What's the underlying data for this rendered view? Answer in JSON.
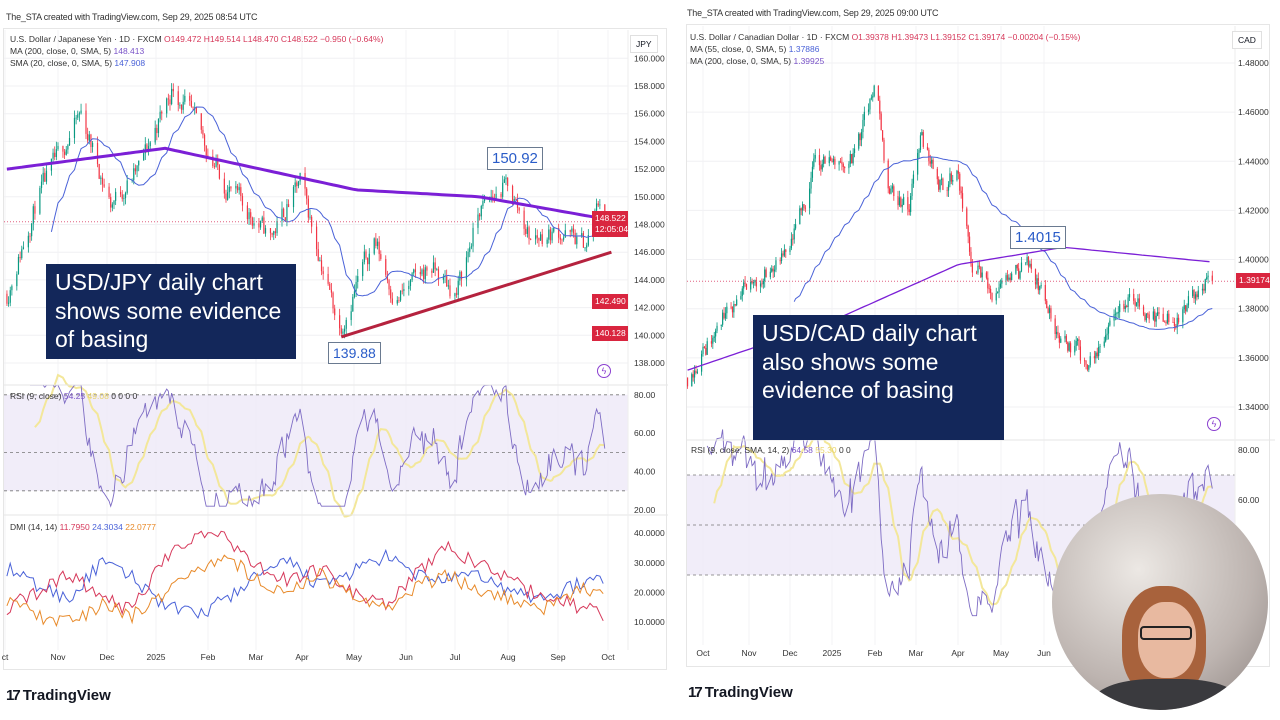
{
  "left": {
    "credit": "The_STA created with TradingView.com, Sep 29, 2025 08:54 UTC",
    "symbol": "U.S. Dollar / Japanese Yen · 1D · FXCM",
    "ohlc": {
      "o": "O149.472",
      "h": "H149.514",
      "l": "L148.470",
      "c": "C148.522",
      "chg": "−0.950 (−0.64%)"
    },
    "ma1": {
      "label": "MA (200, close, 0, SMA, 5)",
      "value": "148.413"
    },
    "ma2": {
      "label": "SMA (20, close, 0, SMA, 5)",
      "value": "147.908"
    },
    "currency": "JPY",
    "price_tag": "148.522",
    "countdown": "12:05:04",
    "tag2": "142.490",
    "tag3": "140.128",
    "rsi_legend": {
      "label": "RSI (9, close)",
      "value": "54.25",
      "sma": "49.08",
      "z": "0  0  0  0"
    },
    "dmi_legend": {
      "label": "DMI (14, 14)",
      "minus": "11.7950",
      "plus": "24.3034",
      "adx": "22.0777"
    },
    "annotation": "USD/JPY daily chart shows some evidence of basing",
    "high_label": "150.92",
    "low_label": "139.88",
    "colors": {
      "up": "#089981",
      "down": "#f23645",
      "ma200": "#7b1fd6",
      "sma": "#4a62d8",
      "trend": "#b5223e"
    }
  },
  "right": {
    "credit": "The_STA created with TradingView.com, Sep 29, 2025 09:00 UTC",
    "symbol": "U.S. Dollar / Canadian Dollar · 1D · FXCM",
    "ohlc": {
      "o": "O1.39378",
      "h": "H1.39473",
      "l": "L1.39152",
      "c": "C1.39174",
      "chg": "−0.00204 (−0.15%)"
    },
    "ma1": {
      "label": "MA (55, close, 0, SMA, 5)",
      "value": "1.37886"
    },
    "ma2": {
      "label": "MA (200, close, 0, SMA, 5)",
      "value": "1.39925"
    },
    "currency": "CAD",
    "price_tag": "1.39174",
    "rsi_legend": {
      "label": "RSI (9, close, SMA, 14, 2)",
      "value": "64.58",
      "sma": "55.30",
      "z": "0  0"
    },
    "annotation": "USD/CAD daily chart also shows some evidence of basing",
    "level_label": "1.4015"
  },
  "branding": "TradingView",
  "chart_data": [
    {
      "type": "candlestick",
      "title": "USD/JPY 1D",
      "ylim": [
        137,
        160.5
      ],
      "yticks": [
        "160.000",
        "158.000",
        "156.000",
        "154.000",
        "152.000",
        "150.000",
        "148.000",
        "146.000",
        "144.000",
        "142.000",
        "140.000",
        "138.000"
      ],
      "xticks": [
        "ct",
        "Nov",
        "Dec",
        "2025",
        "Feb",
        "Mar",
        "Apr",
        "May",
        "Jun",
        "Jul",
        "Aug",
        "Sep",
        "Oct"
      ],
      "close_path": [
        [
          "2024-10-01",
          143
        ],
        [
          "2024-10-20",
          150
        ],
        [
          "2024-11-15",
          156
        ],
        [
          "2024-12-03",
          149.5
        ],
        [
          "2024-12-20",
          152
        ],
        [
          "2025-01-10",
          158
        ],
        [
          "2025-01-20",
          156
        ],
        [
          "2025-02-10",
          151
        ],
        [
          "2025-03-10",
          147
        ],
        [
          "2025-03-28",
          151
        ],
        [
          "2025-04-21",
          140.5
        ],
        [
          "2025-05-12",
          147
        ],
        [
          "2025-05-25",
          142.5
        ],
        [
          "2025-06-15",
          145
        ],
        [
          "2025-07-01",
          143
        ],
        [
          "2025-07-15",
          149
        ],
        [
          "2025-08-01",
          150.9
        ],
        [
          "2025-08-15",
          147
        ],
        [
          "2025-09-01",
          147.5
        ],
        [
          "2025-09-18",
          146.5
        ],
        [
          "2025-09-26",
          149.8
        ],
        [
          "2025-09-29",
          148.5
        ]
      ],
      "ma200_path": [
        [
          "2024-10-01",
          152
        ],
        [
          "2025-01-05",
          153.5
        ],
        [
          "2025-05-01",
          150.5
        ],
        [
          "2025-07-15",
          150
        ],
        [
          "2025-09-29",
          148.4
        ]
      ],
      "trendline": [
        [
          "2025-04-22",
          139.88
        ],
        [
          "2025-10-03",
          146.0
        ]
      ],
      "rsi": {
        "ylim": [
          20,
          80
        ],
        "yticks": [
          "80.00",
          "60.00",
          "40.00",
          "20.00"
        ],
        "levels": [
          80,
          50,
          30
        ]
      },
      "dmi": {
        "ylim": [
          5,
          42
        ],
        "yticks": [
          "40.0000",
          "30.0000",
          "20.0000",
          "10.0000"
        ],
        "plus_di": [
          28,
          22,
          18,
          30,
          25,
          16,
          12,
          18,
          26,
          30,
          22,
          27,
          32,
          26,
          24,
          26,
          20,
          18,
          22,
          25
        ],
        "minus_di": [
          15,
          20,
          26,
          18,
          14,
          32,
          40,
          38,
          28,
          24,
          28,
          20,
          16,
          26,
          35,
          30,
          24,
          18,
          16,
          12
        ],
        "adx": [
          18,
          12,
          10,
          16,
          12,
          20,
          28,
          32,
          24,
          20,
          26,
          18,
          14,
          22,
          26,
          20,
          18,
          14,
          20,
          22
        ]
      }
    },
    {
      "type": "candlestick",
      "title": "USD/CAD 1D",
      "ylim": [
        1.33,
        1.486
      ],
      "yticks": [
        "1.48000",
        "1.46000",
        "1.44000",
        "1.42000",
        "1.40000",
        "1.38000",
        "1.36000",
        "1.34000"
      ],
      "xticks": [
        "Oct",
        "Nov",
        "Dec",
        "2025",
        "Feb",
        "Mar",
        "Apr",
        "May",
        "Jun"
      ],
      "close_path": [
        [
          "2024-09-20",
          1.352
        ],
        [
          "2024-10-20",
          1.38
        ],
        [
          "2024-11-15",
          1.395
        ],
        [
          "2024-12-01",
          1.4
        ],
        [
          "2024-12-20",
          1.44
        ],
        [
          "2025-01-15",
          1.44
        ],
        [
          "2025-02-01",
          1.47
        ],
        [
          "2025-02-10",
          1.43
        ],
        [
          "2025-02-25",
          1.42
        ],
        [
          "2025-03-05",
          1.45
        ],
        [
          "2025-03-20",
          1.43
        ],
        [
          "2025-04-01",
          1.435
        ],
        [
          "2025-04-10",
          1.4
        ],
        [
          "2025-04-25",
          1.383
        ],
        [
          "2025-05-15",
          1.395
        ],
        [
          "2025-05-20",
          1.4
        ],
        [
          "2025-06-10",
          1.37
        ],
        [
          "2025-06-20",
          1.365
        ],
        [
          "2025-07-01",
          1.358
        ],
        [
          "2025-07-15",
          1.37
        ],
        [
          "2025-08-01",
          1.385
        ],
        [
          "2025-08-10",
          1.38
        ],
        [
          "2025-09-01",
          1.375
        ],
        [
          "2025-09-15",
          1.384
        ],
        [
          "2025-09-29",
          1.392
        ]
      ],
      "ma200_path": [
        [
          "2024-09-20",
          1.355
        ],
        [
          "2025-01-01",
          1.375
        ],
        [
          "2025-04-01",
          1.398
        ],
        [
          "2025-06-15",
          1.405
        ],
        [
          "2025-09-29",
          1.399
        ]
      ],
      "rsi": {
        "ylim": [
          10,
          90
        ],
        "yticks": [
          "80.00",
          "60.00"
        ],
        "levels": [
          70,
          50,
          30
        ]
      }
    }
  ]
}
